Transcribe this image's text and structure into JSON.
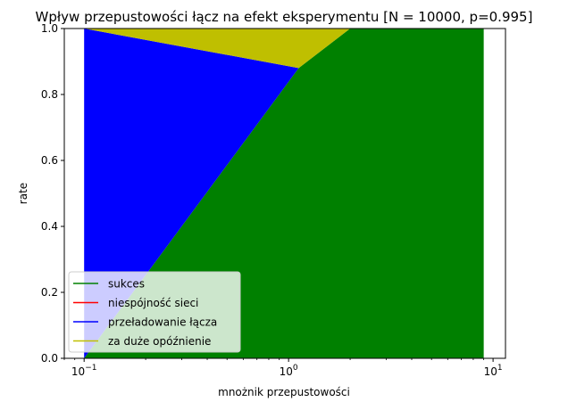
{
  "chart_data": {
    "type": "area",
    "title": "Wpływ przepustowości łącz na efekt eksperymentu [N = 10000, p=0.995]",
    "xlabel": "mnożnik przepustowości",
    "ylabel": "rate",
    "xscale": "log",
    "xlim": [
      0.08,
      11.5
    ],
    "ylim": [
      0,
      1
    ],
    "xticks": [
      {
        "value": 0.1,
        "base": "10",
        "exp": "−1"
      },
      {
        "value": 1,
        "base": "10",
        "exp": "0"
      },
      {
        "value": 10,
        "base": "10",
        "exp": "1"
      }
    ],
    "yticks": [
      "0.0",
      "0.2",
      "0.4",
      "0.6",
      "0.8",
      "1.0"
    ],
    "x": [
      0.1,
      1.12,
      2.0,
      9.0
    ],
    "series": [
      {
        "name": "sukces",
        "color": "#008000",
        "values": [
          0.0,
          0.88,
          1.0,
          1.0
        ]
      },
      {
        "name": "niespójność sieci",
        "color": "#ff0000",
        "values": [
          0.0,
          0.0,
          0.0,
          0.0
        ]
      },
      {
        "name": "przeładowanie łącza",
        "color": "#0000ff",
        "values": [
          1.0,
          0.0,
          0.0,
          0.0
        ]
      },
      {
        "name": "za duże opóźnienie",
        "color": "#bfbf00",
        "values": [
          0.0,
          0.12,
          0.0,
          0.0
        ]
      }
    ],
    "legend_position": "lower-left",
    "grid": false
  }
}
